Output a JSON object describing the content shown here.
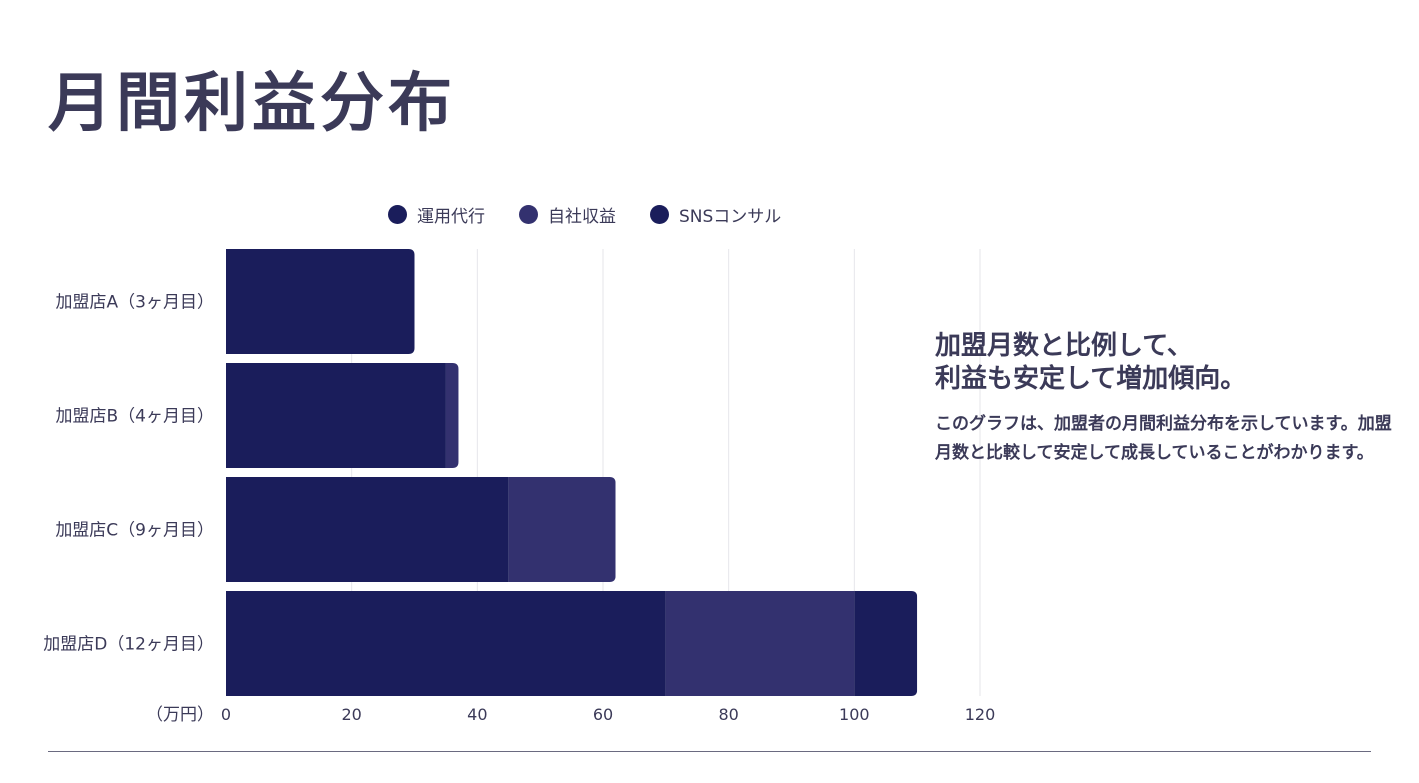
{
  "title": "月間利益分布",
  "side": {
    "heading_line1": "加盟月数と比例して、",
    "heading_line2": "利益も安定して増加傾向。",
    "body": "このグラフは、加盟者の月間利益分布を示しています。加盟月数と比較して安定して成長していることがわかります。"
  },
  "chart_data": {
    "type": "bar",
    "orientation": "horizontal",
    "stacked": true,
    "categories": [
      "加盟店A（3ヶ月目）",
      "加盟店B（4ヶ月目）",
      "加盟店C（9ヶ月目）",
      "加盟店D（12ヶ月目）"
    ],
    "series": [
      {
        "name": "運用代行",
        "values": [
          30,
          35,
          45,
          70
        ],
        "color": "#1a1d5b"
      },
      {
        "name": "自社収益",
        "values": [
          0,
          2,
          17,
          30
        ],
        "color": "#33316f"
      },
      {
        "name": "SNSコンサル",
        "values": [
          0,
          0,
          0,
          10
        ],
        "color": "#1a1d5b"
      }
    ],
    "xlabel": "（万円）",
    "xlim": [
      0,
      120
    ],
    "xticks": [
      0,
      20,
      40,
      60,
      80,
      100,
      120
    ],
    "grid": true,
    "legend": "top"
  }
}
